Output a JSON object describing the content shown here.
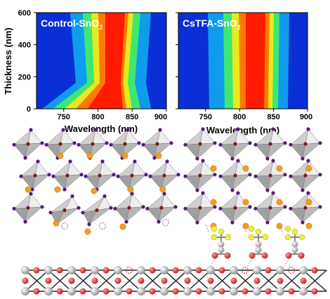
{
  "chart_data": [
    {
      "type": "heatmap",
      "title": "Control-SnO",
      "title_sub": "2",
      "xlabel": "Wavelength (nm)",
      "ylabel": "Thickness (nm)",
      "xlim": [
        710,
        900
      ],
      "ylim": [
        0,
        600
      ],
      "xticks": [
        "750",
        "800",
        "850",
        "900"
      ],
      "yticks": [
        "0",
        "200",
        "400",
        "600"
      ],
      "colormap": "jet",
      "emission_peak_nm": [
        {
          "thickness": 600,
          "center": 820
        },
        {
          "thickness": 150,
          "center": 820
        },
        {
          "thickness": 70,
          "center": 808
        },
        {
          "thickness": 0,
          "center": 820
        }
      ]
    },
    {
      "type": "heatmap",
      "title": "CsTFA-SnO",
      "title_sub": "2",
      "xlabel": "Wavelength (nm)",
      "xlim": [
        710,
        900
      ],
      "ylim": [
        0,
        600
      ],
      "xticks": [
        "750",
        "800",
        "850",
        "900"
      ],
      "colormap": "jet",
      "emission_peak_nm": [
        {
          "thickness": 600,
          "center": 825
        },
        {
          "thickness": 0,
          "center": 825
        }
      ]
    }
  ],
  "colors": {
    "plot_background": "#0a2fd6",
    "octahedra": "#b8b8b8",
    "halide": "#5a1a7a",
    "b_site": "#7a1f1f",
    "a_site": "#f0a020",
    "substrate_metal": "#bdbdbd",
    "substrate_oxygen": "#d81818",
    "fluorine": "#e8f040",
    "vacancy": "#9a5cc8"
  }
}
